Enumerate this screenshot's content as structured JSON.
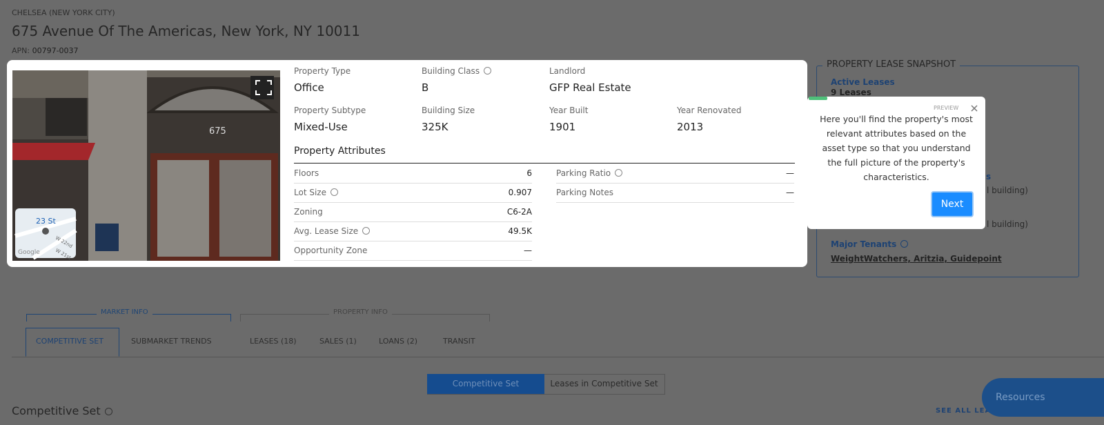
{
  "header": {
    "neighborhood": "CHELSEA (NEW YORK CITY)",
    "address": "675 Avenue Of The Americas, New York, NY 10011",
    "apn_label": "APN:",
    "apn": "00797-0037"
  },
  "photo": {
    "sign": "675",
    "map_labels": [
      "23 St",
      "W 22nd",
      "W 21st",
      "Google"
    ]
  },
  "summary": [
    {
      "label": "Property Type",
      "value": "Office",
      "help": false
    },
    {
      "label": "Building Class",
      "value": "B",
      "help": true
    },
    {
      "label": "Landlord",
      "value": "GFP Real Estate",
      "help": false
    },
    {
      "label": "Property Subtype",
      "value": "Mixed-Use",
      "help": false
    },
    {
      "label": "Building Size",
      "value": "325K",
      "help": false
    },
    {
      "label": "Year Built",
      "value": "1901",
      "help": false
    },
    {
      "label": "Year Renovated",
      "value": "2013",
      "help": false
    }
  ],
  "attributes": {
    "title": "Property Attributes",
    "left": [
      {
        "label": "Floors",
        "value": "6",
        "help": false
      },
      {
        "label": "Lot Size",
        "value": "0.907",
        "help": true
      },
      {
        "label": "Zoning",
        "value": "C6-2A",
        "help": false
      },
      {
        "label": "Avg. Lease Size",
        "value": "49.5K",
        "help": true
      },
      {
        "label": "Opportunity Zone",
        "value": "—",
        "help": false
      }
    ],
    "right": [
      {
        "label": "Parking Ratio",
        "value": "—",
        "help": true
      },
      {
        "label": "Parking Notes",
        "value": "—",
        "help": false
      }
    ]
  },
  "snapshot": {
    "title": "PROPERTY LEASE SNAPSHOT",
    "active_label": "Active Leases",
    "active_value": "9 Leases",
    "partial": [
      "s",
      "l building)",
      "l building)"
    ],
    "tenants_label": "Major Tenants",
    "tenants": "WeightWatchers, Aritzia, Guidepoint"
  },
  "tooltip": {
    "tag": "PREVIEW",
    "text": "Here you'll find the property's most relevant attributes based on the asset type so that you understand the full picture of the property's characteristics.",
    "button": "Next"
  },
  "tabs": {
    "groups": [
      "MARKET INFO",
      "PROPERTY INFO"
    ],
    "items": [
      "COMPETITIVE SET",
      "SUBMARKET TRENDS",
      "LEASES (18)",
      "SALES (1)",
      "LOANS (2)",
      "TRANSIT"
    ]
  },
  "toggle": [
    "Competitive Set",
    "Leases in Competitive Set"
  ],
  "section": {
    "title": "Competitive Set",
    "link": "SEE ALL LEA"
  },
  "resources": "Resources"
}
